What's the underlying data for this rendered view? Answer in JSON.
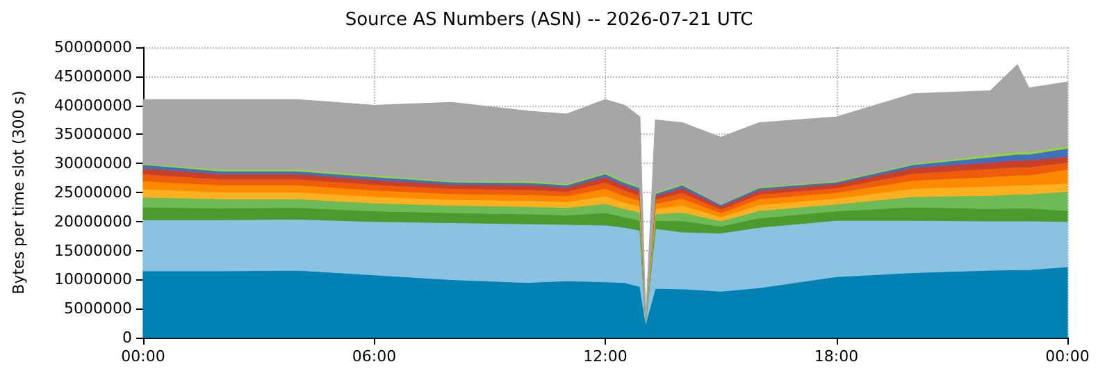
{
  "chart_data": {
    "type": "area",
    "title": "Source AS Numbers (ASN) -- 2026-07-21 UTC",
    "ylabel": "Bytes per time slot (300 s)",
    "stacked": true,
    "grid": true,
    "x": [
      0,
      2,
      4,
      6,
      8,
      10,
      11,
      12,
      12.5,
      12.9,
      13.05,
      13.3,
      14,
      15,
      16,
      18,
      20,
      22,
      22.7,
      23,
      24
    ],
    "xlim": [
      0,
      24
    ],
    "xticks": [
      {
        "value": 0,
        "label": "00:00"
      },
      {
        "value": 6,
        "label": "06:00"
      },
      {
        "value": 12,
        "label": "12:00"
      },
      {
        "value": 18,
        "label": "18:00"
      },
      {
        "value": 24,
        "label": "00:00"
      }
    ],
    "ylim": [
      0,
      50000000
    ],
    "yticks": [
      0,
      5000000,
      10000000,
      15000000,
      20000000,
      25000000,
      30000000,
      35000000,
      40000000,
      45000000,
      50000000
    ],
    "series": [
      {
        "color": "#0081b4",
        "values": [
          11500000,
          11500000,
          11600000,
          10800000,
          10000000,
          9500000,
          9800000,
          9600000,
          9500000,
          8800000,
          2500000,
          8500000,
          8400000,
          8000000,
          8600000,
          10500000,
          11200000,
          11600000,
          11700000,
          11700000,
          12200000
        ]
      },
      {
        "color": "#8bc2e2",
        "values": [
          8800000,
          8800000,
          8800000,
          9200000,
          9800000,
          10100000,
          9700000,
          9800000,
          9500000,
          9700000,
          300000,
          10300000,
          9800000,
          10000000,
          10400000,
          9700000,
          9000000,
          8500000,
          8400000,
          8400000,
          7800000
        ]
      },
      {
        "color": "#4c9a2e",
        "values": [
          2200000,
          2000000,
          2000000,
          1800000,
          1700000,
          1700000,
          1600000,
          2100000,
          1800000,
          1700000,
          100000,
          1400000,
          1900000,
          1200000,
          1600000,
          1600000,
          2300000,
          2100000,
          2200000,
          2200000,
          1900000
        ]
      },
      {
        "color": "#6cbb56",
        "values": [
          1700000,
          1600000,
          1500000,
          1400000,
          1300000,
          1300000,
          1300000,
          1600000,
          1400000,
          1400000,
          100000,
          1100000,
          1500000,
          900000,
          1300000,
          1200000,
          1800000,
          2300000,
          2400000,
          2400000,
          3300000
        ]
      },
      {
        "color": "#fdb120",
        "values": [
          1400000,
          1200000,
          1200000,
          1100000,
          1000000,
          1000000,
          1000000,
          1300000,
          1100000,
          1000000,
          0,
          900000,
          1200000,
          700000,
          1000000,
          1000000,
          1400000,
          1600000,
          1600000,
          1600000,
          1400000
        ]
      },
      {
        "color": "#fe8a00",
        "values": [
          1400000,
          1200000,
          1200000,
          1100000,
          1000000,
          1000000,
          1000000,
          1300000,
          1100000,
          1000000,
          0,
          900000,
          1200000,
          700000,
          1000000,
          1000000,
          1400000,
          1600000,
          1700000,
          1700000,
          2400000
        ]
      },
      {
        "color": "#ee5c0c",
        "values": [
          1200000,
          1000000,
          1000000,
          1000000,
          900000,
          900000,
          800000,
          1100000,
          1000000,
          900000,
          0,
          700000,
          1000000,
          600000,
          800000,
          800000,
          1200000,
          1400000,
          1400000,
          1400000,
          1200000
        ]
      },
      {
        "color": "#c9402a",
        "values": [
          1000000,
          900000,
          900000,
          800000,
          700000,
          800000,
          700000,
          900000,
          800000,
          800000,
          0,
          600000,
          800000,
          500000,
          700000,
          700000,
          1000000,
          1100000,
          1200000,
          1200000,
          1000000
        ]
      },
      {
        "color": "#4270c0",
        "values": [
          600000,
          500000,
          500000,
          500000,
          400000,
          400000,
          400000,
          500000,
          500000,
          500000,
          0,
          400000,
          500000,
          300000,
          400000,
          300000,
          500000,
          900000,
          1000000,
          1000000,
          1400000
        ]
      },
      {
        "color": "#99d435",
        "values": [
          200000,
          300000,
          300000,
          300000,
          200000,
          300000,
          200000,
          300000,
          300000,
          200000,
          0,
          200000,
          200000,
          100000,
          200000,
          200000,
          200000,
          400000,
          400000,
          400000,
          400000
        ]
      },
      {
        "color": "#a6a6a6",
        "values": [
          11000000,
          12000000,
          12000000,
          12000000,
          13500000,
          12000000,
          12000000,
          12500000,
          13000000,
          12000000,
          200000,
          12500000,
          10500000,
          11500000,
          11000000,
          11000000,
          12000000,
          11000000,
          15000000,
          11000000,
          11000000
        ]
      }
    ]
  }
}
